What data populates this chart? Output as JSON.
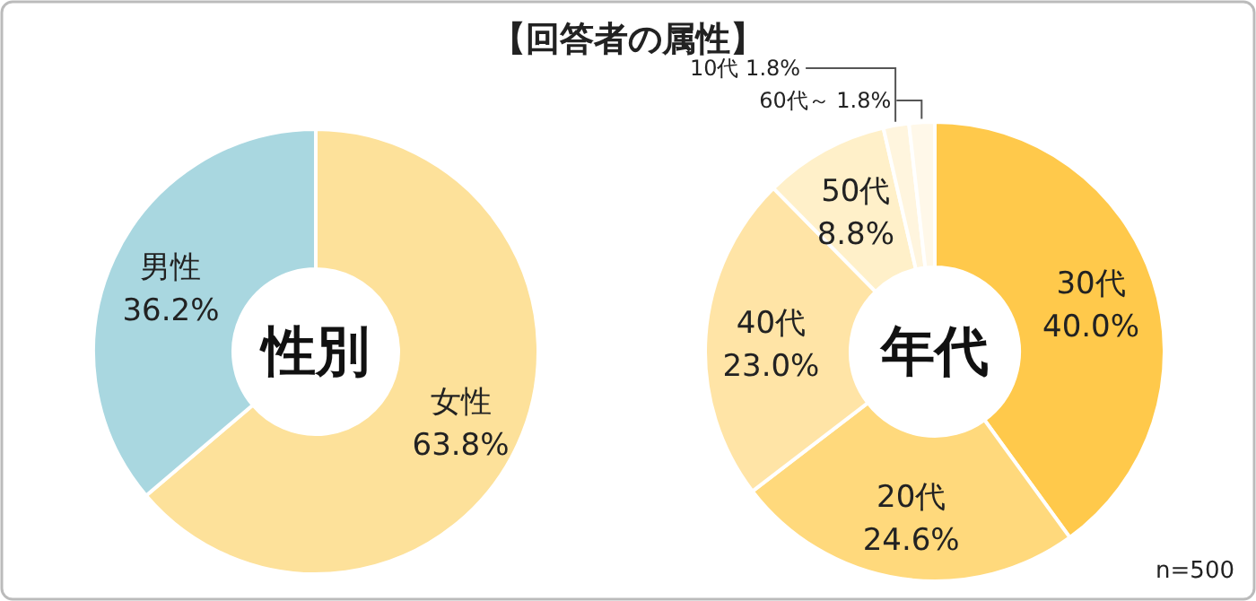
{
  "chart_data": [
    {
      "type": "donut",
      "title": "【回答者の属性】",
      "subtitle": "性別",
      "categories": [
        "女性",
        "男性"
      ],
      "values": [
        63.8,
        36.2
      ],
      "value_labels": [
        "63.8%",
        "36.2%"
      ],
      "colors": [
        "#fde19a",
        "#a9d7e0"
      ]
    },
    {
      "type": "donut",
      "subtitle": "年代",
      "categories": [
        "30代",
        "20代",
        "40代",
        "50代",
        "10代",
        "60代～"
      ],
      "values": [
        40.0,
        24.6,
        23.0,
        8.8,
        1.8,
        1.8
      ],
      "value_labels": [
        "40.0%",
        "24.6%",
        "23.0%",
        "8.8%",
        "1.8%",
        "1.8%"
      ],
      "colors": [
        "#ffc94b",
        "#ffd97c",
        "#ffe4a6",
        "#fff0c9",
        "#fff5de",
        "#fff8e9"
      ],
      "annotations": [
        "n=500"
      ]
    }
  ]
}
